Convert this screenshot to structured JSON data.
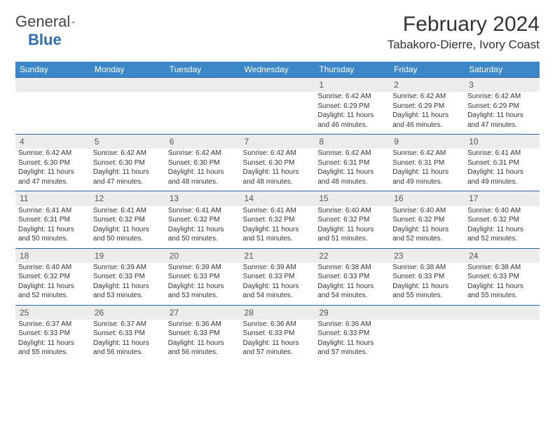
{
  "brand": {
    "part1": "General",
    "part2": "Blue"
  },
  "title": "February 2024",
  "location": "Tabakoro-Dierre, Ivory Coast",
  "colors": {
    "header_bg": "#3b87c8",
    "header_text": "#ffffff",
    "daynum_bg": "#ececec",
    "rule": "#2868a0",
    "brand_blue": "#2a6fb5",
    "text": "#333333"
  },
  "day_headers": [
    "Sunday",
    "Monday",
    "Tuesday",
    "Wednesday",
    "Thursday",
    "Friday",
    "Saturday"
  ],
  "weeks": [
    {
      "nums": [
        "",
        "",
        "",
        "",
        "1",
        "2",
        "3"
      ],
      "cells": [
        null,
        null,
        null,
        null,
        {
          "sunrise": "Sunrise: 6:42 AM",
          "sunset": "Sunset: 6:29 PM",
          "day1": "Daylight: 11 hours",
          "day2": "and 46 minutes."
        },
        {
          "sunrise": "Sunrise: 6:42 AM",
          "sunset": "Sunset: 6:29 PM",
          "day1": "Daylight: 11 hours",
          "day2": "and 46 minutes."
        },
        {
          "sunrise": "Sunrise: 6:42 AM",
          "sunset": "Sunset: 6:29 PM",
          "day1": "Daylight: 11 hours",
          "day2": "and 47 minutes."
        }
      ]
    },
    {
      "nums": [
        "4",
        "5",
        "6",
        "7",
        "8",
        "9",
        "10"
      ],
      "cells": [
        {
          "sunrise": "Sunrise: 6:42 AM",
          "sunset": "Sunset: 6:30 PM",
          "day1": "Daylight: 11 hours",
          "day2": "and 47 minutes."
        },
        {
          "sunrise": "Sunrise: 6:42 AM",
          "sunset": "Sunset: 6:30 PM",
          "day1": "Daylight: 11 hours",
          "day2": "and 47 minutes."
        },
        {
          "sunrise": "Sunrise: 6:42 AM",
          "sunset": "Sunset: 6:30 PM",
          "day1": "Daylight: 11 hours",
          "day2": "and 48 minutes."
        },
        {
          "sunrise": "Sunrise: 6:42 AM",
          "sunset": "Sunset: 6:30 PM",
          "day1": "Daylight: 11 hours",
          "day2": "and 48 minutes."
        },
        {
          "sunrise": "Sunrise: 6:42 AM",
          "sunset": "Sunset: 6:31 PM",
          "day1": "Daylight: 11 hours",
          "day2": "and 48 minutes."
        },
        {
          "sunrise": "Sunrise: 6:42 AM",
          "sunset": "Sunset: 6:31 PM",
          "day1": "Daylight: 11 hours",
          "day2": "and 49 minutes."
        },
        {
          "sunrise": "Sunrise: 6:41 AM",
          "sunset": "Sunset: 6:31 PM",
          "day1": "Daylight: 11 hours",
          "day2": "and 49 minutes."
        }
      ]
    },
    {
      "nums": [
        "11",
        "12",
        "13",
        "14",
        "15",
        "16",
        "17"
      ],
      "cells": [
        {
          "sunrise": "Sunrise: 6:41 AM",
          "sunset": "Sunset: 6:31 PM",
          "day1": "Daylight: 11 hours",
          "day2": "and 50 minutes."
        },
        {
          "sunrise": "Sunrise: 6:41 AM",
          "sunset": "Sunset: 6:32 PM",
          "day1": "Daylight: 11 hours",
          "day2": "and 50 minutes."
        },
        {
          "sunrise": "Sunrise: 6:41 AM",
          "sunset": "Sunset: 6:32 PM",
          "day1": "Daylight: 11 hours",
          "day2": "and 50 minutes."
        },
        {
          "sunrise": "Sunrise: 6:41 AM",
          "sunset": "Sunset: 6:32 PM",
          "day1": "Daylight: 11 hours",
          "day2": "and 51 minutes."
        },
        {
          "sunrise": "Sunrise: 6:40 AM",
          "sunset": "Sunset: 6:32 PM",
          "day1": "Daylight: 11 hours",
          "day2": "and 51 minutes."
        },
        {
          "sunrise": "Sunrise: 6:40 AM",
          "sunset": "Sunset: 6:32 PM",
          "day1": "Daylight: 11 hours",
          "day2": "and 52 minutes."
        },
        {
          "sunrise": "Sunrise: 6:40 AM",
          "sunset": "Sunset: 6:32 PM",
          "day1": "Daylight: 11 hours",
          "day2": "and 52 minutes."
        }
      ]
    },
    {
      "nums": [
        "18",
        "19",
        "20",
        "21",
        "22",
        "23",
        "24"
      ],
      "cells": [
        {
          "sunrise": "Sunrise: 6:40 AM",
          "sunset": "Sunset: 6:32 PM",
          "day1": "Daylight: 11 hours",
          "day2": "and 52 minutes."
        },
        {
          "sunrise": "Sunrise: 6:39 AM",
          "sunset": "Sunset: 6:33 PM",
          "day1": "Daylight: 11 hours",
          "day2": "and 53 minutes."
        },
        {
          "sunrise": "Sunrise: 6:39 AM",
          "sunset": "Sunset: 6:33 PM",
          "day1": "Daylight: 11 hours",
          "day2": "and 53 minutes."
        },
        {
          "sunrise": "Sunrise: 6:39 AM",
          "sunset": "Sunset: 6:33 PM",
          "day1": "Daylight: 11 hours",
          "day2": "and 54 minutes."
        },
        {
          "sunrise": "Sunrise: 6:38 AM",
          "sunset": "Sunset: 6:33 PM",
          "day1": "Daylight: 11 hours",
          "day2": "and 54 minutes."
        },
        {
          "sunrise": "Sunrise: 6:38 AM",
          "sunset": "Sunset: 6:33 PM",
          "day1": "Daylight: 11 hours",
          "day2": "and 55 minutes."
        },
        {
          "sunrise": "Sunrise: 6:38 AM",
          "sunset": "Sunset: 6:33 PM",
          "day1": "Daylight: 11 hours",
          "day2": "and 55 minutes."
        }
      ]
    },
    {
      "nums": [
        "25",
        "26",
        "27",
        "28",
        "29",
        "",
        ""
      ],
      "cells": [
        {
          "sunrise": "Sunrise: 6:37 AM",
          "sunset": "Sunset: 6:33 PM",
          "day1": "Daylight: 11 hours",
          "day2": "and 55 minutes."
        },
        {
          "sunrise": "Sunrise: 6:37 AM",
          "sunset": "Sunset: 6:33 PM",
          "day1": "Daylight: 11 hours",
          "day2": "and 56 minutes."
        },
        {
          "sunrise": "Sunrise: 6:36 AM",
          "sunset": "Sunset: 6:33 PM",
          "day1": "Daylight: 11 hours",
          "day2": "and 56 minutes."
        },
        {
          "sunrise": "Sunrise: 6:36 AM",
          "sunset": "Sunset: 6:33 PM",
          "day1": "Daylight: 11 hours",
          "day2": "and 57 minutes."
        },
        {
          "sunrise": "Sunrise: 6:36 AM",
          "sunset": "Sunset: 6:33 PM",
          "day1": "Daylight: 11 hours",
          "day2": "and 57 minutes."
        },
        null,
        null
      ]
    }
  ]
}
